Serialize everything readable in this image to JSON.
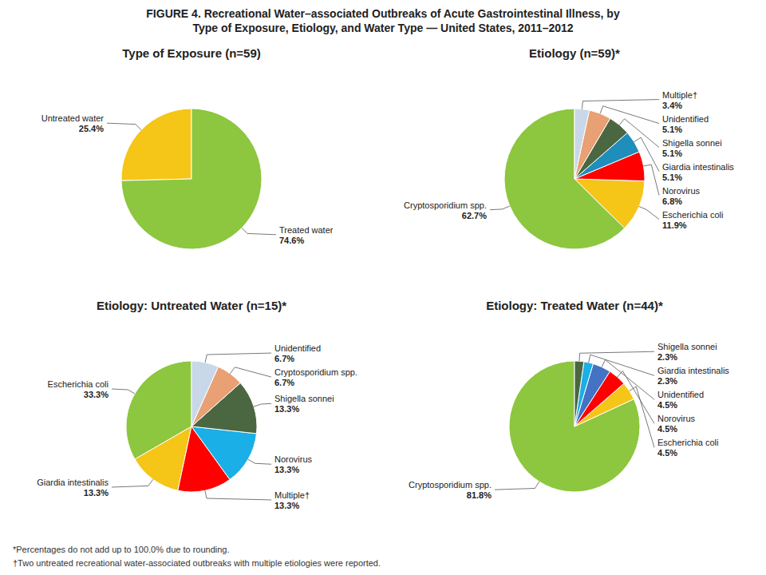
{
  "title": "FIGURE 4. Recreational Water–associated Outbreaks of Acute Gastrointestinal Illness, by\nType of Exposure, Etiology, and Water Type — United States, 2011–2012",
  "annotations": [
    "*Percentages do not add up to 100.0% due to rounding.",
    "†Two untreated recreational water-associated outbreaks with multiple etiologies were reported."
  ],
  "chart_data": [
    {
      "type": "pie",
      "title": "Type of Exposure (n=59)",
      "categories": [
        "Untreated water",
        "Treated water"
      ],
      "values": [
        25.4,
        74.6
      ],
      "value_labels": [
        "25.4%",
        "74.6%"
      ],
      "colors": [
        "#F5C518",
        "#8DC63F"
      ],
      "data_labels": true
    },
    {
      "type": "pie",
      "title": "Etiology (n=59)*",
      "categories": [
        "Cryptosporidium spp.",
        "Escherichia coli",
        "Norovirus",
        "Giardia intestinalis",
        "Shigella sonnei",
        "Unidentified",
        "Multiple†"
      ],
      "values": [
        62.7,
        11.9,
        6.8,
        5.1,
        5.1,
        5.1,
        3.4
      ],
      "value_labels": [
        "62.7%",
        "11.9%",
        "6.8%",
        "5.1%",
        "5.1%",
        "5.1%",
        "3.4%"
      ],
      "colors": [
        "#8DC63F",
        "#F5C518",
        "#FF0000",
        "#1F8EBB",
        "#4A6741",
        "#E8A074",
        "#C8D8E8"
      ],
      "data_labels": true
    },
    {
      "type": "pie",
      "title": "Etiology: Untreated Water (n=15)*",
      "categories": [
        "Escherichia coli",
        "Giardia intestinalis",
        "Multiple†",
        "Norovirus",
        "Shigella sonnei",
        "Cryptosporidium spp.",
        "Unidentified"
      ],
      "values": [
        33.3,
        13.3,
        13.3,
        13.3,
        13.3,
        6.7,
        6.7
      ],
      "value_labels": [
        "33.3%",
        "13.3%",
        "13.3%",
        "13.3%",
        "13.3%",
        "6.7%",
        "6.7%"
      ],
      "colors": [
        "#8DC63F",
        "#F5C518",
        "#FF0000",
        "#1AAFE6",
        "#4A6741",
        "#E8A074",
        "#C8D8E8"
      ],
      "data_labels": true
    },
    {
      "type": "pie",
      "title": "Etiology: Treated Water (n=44)*",
      "categories": [
        "Cryptosporidium spp.",
        "Escherichia coli",
        "Norovirus",
        "Unidentified",
        "Giardia intestinalis",
        "Shigella sonnei"
      ],
      "values": [
        81.8,
        4.5,
        4.5,
        4.5,
        2.3,
        2.3
      ],
      "value_labels": [
        "81.8%",
        "4.5%",
        "4.5%",
        "4.5%",
        "2.3%",
        "2.3%"
      ],
      "colors": [
        "#8DC63F",
        "#F5C518",
        "#FF0000",
        "#4472C4",
        "#1AAFE6",
        "#4A6741"
      ],
      "data_labels": true
    }
  ]
}
